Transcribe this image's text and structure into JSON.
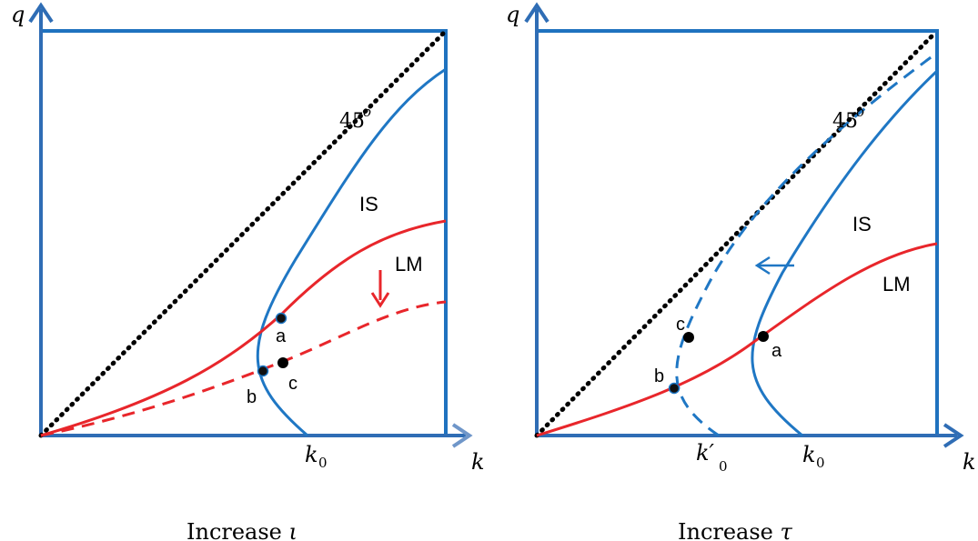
{
  "left_panel": {
    "y_axis_label": "q",
    "x_axis_label": "k",
    "k_tick": "k",
    "k_tick_sub": "0",
    "angle_label": "45",
    "angle_sup": "o",
    "is_label": "IS",
    "lm_label": "LM",
    "point_a": "a",
    "point_b": "b",
    "point_c": "c",
    "caption_text": "Increase ",
    "caption_symbol": "ι"
  },
  "right_panel": {
    "y_axis_label": "q",
    "x_axis_label": "k",
    "k_prime_tick": "k′",
    "k_prime_sub": "0",
    "k_tick": "k",
    "k_tick_sub": "0",
    "angle_label": "45",
    "angle_sup": "o",
    "is_label": "IS",
    "lm_label": "LM",
    "point_a": "a",
    "point_b": "b",
    "point_c": "c",
    "caption_text": "Increase ",
    "caption_symbol": "τ"
  },
  "colors": {
    "axis": "#2f6db5",
    "is_curve": "#1f77c4",
    "lm_curve": "#e8262b",
    "diagonal": "#000000"
  }
}
